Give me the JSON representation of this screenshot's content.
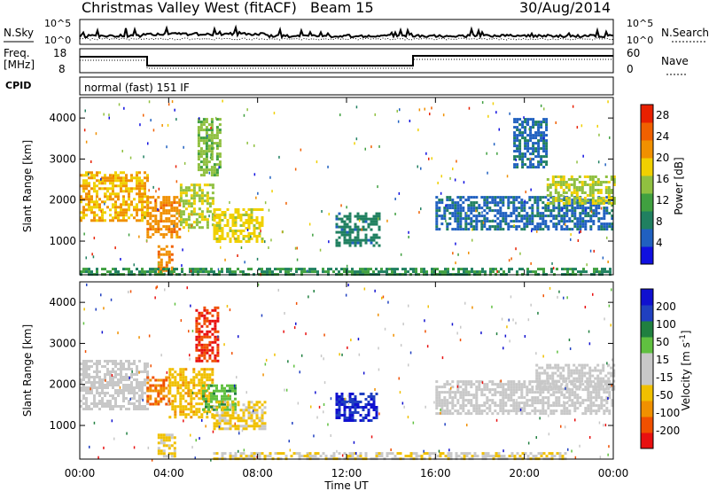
{
  "header": {
    "title": "Christmas Valley West (fitACF)",
    "beam": "Beam 15",
    "date": "30/Aug/2014"
  },
  "panels": {
    "nsky_label": "N.Sky",
    "nsearch_label": "N.Search",
    "nsky_ticks": [
      "10^5",
      "10^0"
    ],
    "nsearch_ticks": [
      "10^5",
      "10^0"
    ],
    "freq_label": "Freq.",
    "freq_unit": "[MHz]",
    "freq_ticks": [
      "18",
      "8"
    ],
    "nave_label": "Nave",
    "nave_ticks": [
      "60",
      "0"
    ],
    "cpid_label": "CPID",
    "cpid_value": "normal (fast) 151 IF"
  },
  "colors": {
    "power": [
      "#1010e0",
      "#2060c0",
      "#208060",
      "#40a040",
      "#90c040",
      "#f0d000",
      "#f09000",
      "#f06000",
      "#e82000"
    ],
    "velocity": [
      "#e81010",
      "#f05000",
      "#f09000",
      "#f0c000",
      "#c8c8c8",
      "#c8c8c8",
      "#60c040",
      "#208040",
      "#2040c0",
      "#1010d0"
    ]
  },
  "chart_data": [
    {
      "type": "heatmap",
      "name": "power",
      "ylabel": "Slant Range [km]",
      "xlabel": "Time UT",
      "x_ticks": [
        "00:00",
        "04:00",
        "08:00",
        "12:00",
        "16:00",
        "20:00",
        "00:00"
      ],
      "xlim_hours": [
        0,
        24
      ],
      "y_ticks": [
        "1000",
        "2000",
        "3000",
        "4000"
      ],
      "ylim_km": [
        180,
        4500
      ],
      "colorbar_label": "Power [dB]",
      "colorbar_ticks": [
        "4",
        "8",
        "12",
        "16",
        "20",
        "24",
        "28"
      ],
      "colorbar_range": [
        0,
        30
      ],
      "regions": [
        {
          "t0": 0.0,
          "t1": 3.0,
          "r0": 1500,
          "r1": 2700,
          "level": 20
        },
        {
          "t0": 3.0,
          "t1": 4.5,
          "r0": 1100,
          "r1": 2100,
          "level": 22
        },
        {
          "t0": 4.5,
          "t1": 6.0,
          "r0": 1300,
          "r1": 2400,
          "level": 16
        },
        {
          "t0": 6.0,
          "t1": 8.2,
          "r0": 1000,
          "r1": 1800,
          "level": 18
        },
        {
          "t0": 5.3,
          "t1": 6.3,
          "r0": 2600,
          "r1": 4000,
          "level": 14
        },
        {
          "t0": 3.5,
          "t1": 4.2,
          "r0": 250,
          "r1": 900,
          "level": 22
        },
        {
          "t0": 11.5,
          "t1": 13.5,
          "r0": 900,
          "r1": 1700,
          "level": 8
        },
        {
          "t0": 16.0,
          "t1": 24.0,
          "r0": 1300,
          "r1": 2100,
          "level": 6
        },
        {
          "t0": 19.5,
          "t1": 21.0,
          "r0": 2800,
          "r1": 4000,
          "level": 6
        },
        {
          "t0": 21.0,
          "t1": 24.0,
          "r0": 1900,
          "r1": 2600,
          "level": 16
        },
        {
          "t0": 0.0,
          "t1": 24.0,
          "r0": 180,
          "r1": 350,
          "level": 10
        }
      ]
    },
    {
      "type": "heatmap",
      "name": "velocity",
      "ylabel": "Slant Range [km]",
      "xlabel": "Time UT",
      "x_ticks": [
        "00:00",
        "04:00",
        "08:00",
        "12:00",
        "16:00",
        "20:00",
        "00:00"
      ],
      "xlim_hours": [
        0,
        24
      ],
      "y_ticks": [
        "1000",
        "2000",
        "3000",
        "4000"
      ],
      "ylim_km": [
        180,
        4500
      ],
      "colorbar_label": "Velocity [m s^-1]",
      "colorbar_ticks": [
        "200",
        "100",
        "50",
        "15",
        "-15",
        "-50",
        "-100",
        "-200"
      ],
      "colorbar_range": [
        -250,
        250
      ],
      "regions": [
        {
          "t0": 0.0,
          "t1": 3.0,
          "r0": 1400,
          "r1": 2600,
          "level": 0
        },
        {
          "t0": 3.0,
          "t1": 4.0,
          "r0": 1500,
          "r1": 2200,
          "level": -150
        },
        {
          "t0": 4.0,
          "t1": 6.0,
          "r0": 1200,
          "r1": 2400,
          "level": -80
        },
        {
          "t0": 5.5,
          "t1": 7.0,
          "r0": 1400,
          "r1": 2000,
          "level": 80
        },
        {
          "t0": 6.0,
          "t1": 8.3,
          "r0": 900,
          "r1": 1600,
          "level": -60
        },
        {
          "t0": 5.2,
          "t1": 6.2,
          "r0": 2600,
          "r1": 3900,
          "level": -200
        },
        {
          "t0": 11.5,
          "t1": 13.3,
          "r0": 1100,
          "r1": 1800,
          "level": 200
        },
        {
          "t0": 16.0,
          "t1": 24.0,
          "r0": 1300,
          "r1": 2100,
          "level": 0
        },
        {
          "t0": 20.5,
          "t1": 24.0,
          "r0": 1900,
          "r1": 2500,
          "level": 0
        },
        {
          "t0": 6.0,
          "t1": 22.0,
          "r0": 180,
          "r1": 350,
          "level": -40
        },
        {
          "t0": 3.5,
          "t1": 4.3,
          "r0": 250,
          "r1": 800,
          "level": -60
        }
      ]
    }
  ]
}
